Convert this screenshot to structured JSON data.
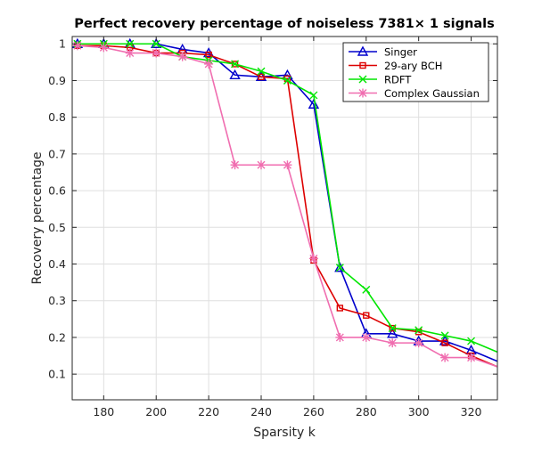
{
  "chart_data": {
    "type": "line",
    "title": "Perfect recovery percentage of noiseless 7381× 1 signals",
    "xlabel": "Sparsity k",
    "ylabel": "Recovery percentage",
    "xlim": [
      168,
      330
    ],
    "ylim": [
      0.03,
      1.02
    ],
    "x_ticks": [
      180,
      200,
      220,
      240,
      260,
      280,
      300,
      320
    ],
    "y_ticks": [
      0.1,
      0.2,
      0.3,
      0.4,
      0.5,
      0.6,
      0.7,
      0.8,
      0.9,
      1
    ],
    "x_tick_labels": [
      "180",
      "200",
      "220",
      "240",
      "260",
      "280",
      "300",
      "320"
    ],
    "y_tick_labels": [
      "0.1",
      "0.2",
      "0.3",
      "0.4",
      "0.5",
      "0.6",
      "0.7",
      "0.8",
      "0.9",
      "1"
    ],
    "grid": true,
    "legend_position": "top-right",
    "x": [
      170,
      180,
      190,
      200,
      210,
      220,
      230,
      240,
      250,
      260,
      270,
      280,
      290,
      300,
      310,
      320,
      330
    ],
    "series": [
      {
        "name": "Singer",
        "color": "#0000cc",
        "marker": "triangle",
        "values": [
          1.0,
          1.0,
          1.0,
          1.0,
          0.985,
          0.975,
          0.915,
          0.91,
          0.915,
          0.835,
          0.39,
          0.21,
          0.21,
          0.19,
          0.19,
          0.165,
          0.135
        ]
      },
      {
        "name": "29-ary BCH",
        "color": "#dd0000",
        "marker": "square",
        "values": [
          0.995,
          0.995,
          0.99,
          0.975,
          0.975,
          0.97,
          0.945,
          0.91,
          0.905,
          0.41,
          0.28,
          0.26,
          0.225,
          0.215,
          0.185,
          0.15,
          0.12
        ]
      },
      {
        "name": "RDFT",
        "color": "#00e600",
        "marker": "x",
        "values": [
          1.0,
          1.0,
          1.0,
          1.0,
          0.965,
          0.955,
          0.945,
          0.925,
          0.9,
          0.86,
          0.39,
          0.33,
          0.225,
          0.22,
          0.205,
          0.19,
          0.16
        ]
      },
      {
        "name": "Complex Gaussian",
        "color": "#f06eb0",
        "marker": "asterisk",
        "values": [
          0.995,
          0.99,
          0.975,
          0.975,
          0.965,
          0.945,
          0.67,
          0.67,
          0.67,
          0.415,
          0.2,
          0.2,
          0.185,
          0.185,
          0.145,
          0.145,
          0.12
        ]
      }
    ]
  }
}
